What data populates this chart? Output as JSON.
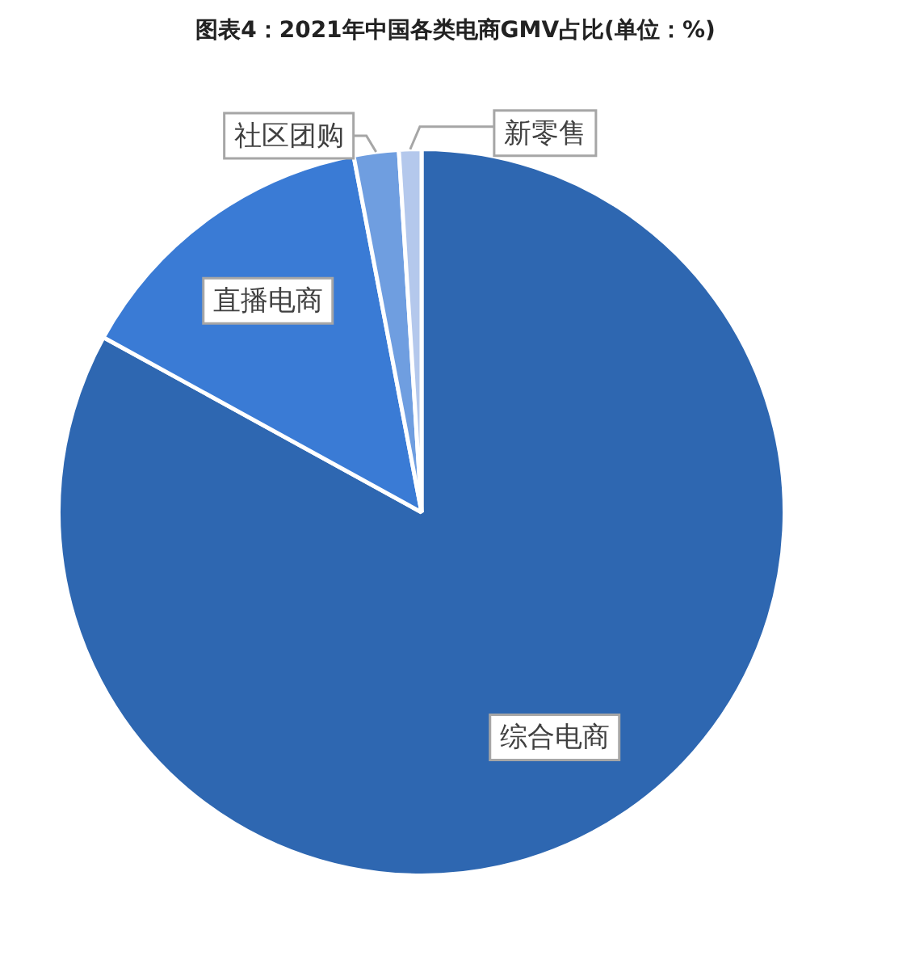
{
  "chart_data": {
    "type": "pie",
    "title": "图表4：2021年中国各类电商GMV占比(单位：%)",
    "categories": [
      "综合电商",
      "直播电商",
      "社区团购",
      "新零售"
    ],
    "values": [
      83,
      14,
      2,
      1
    ],
    "colors": [
      "#2e67b1",
      "#3a7bd5",
      "#6f9ee0",
      "#b4c8ec"
    ],
    "legend": false
  }
}
